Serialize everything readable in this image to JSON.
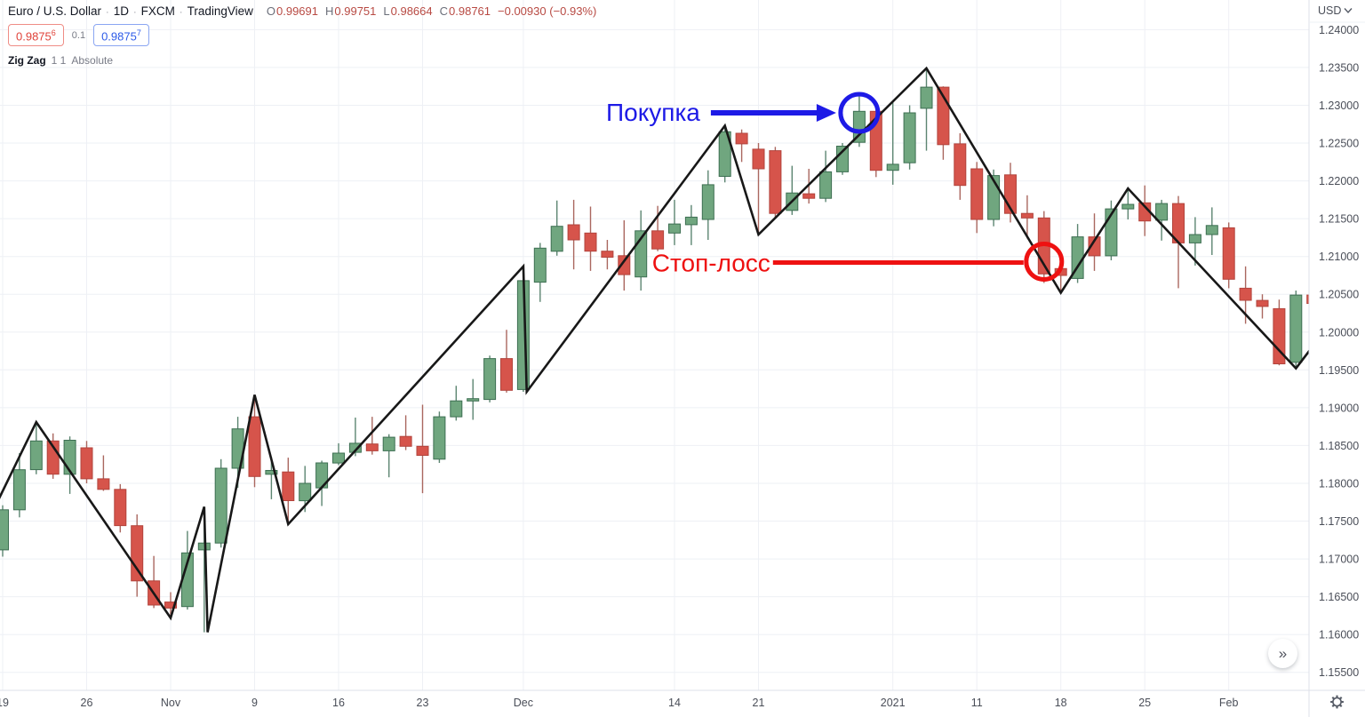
{
  "header": {
    "symbol": "Euro / U.S. Dollar",
    "sep": "·",
    "interval": "1D",
    "exchange": "FXCM",
    "platform": "TradingView",
    "ohlc": {
      "o_label": "O",
      "o": "0.99691",
      "h_label": "H",
      "h": "0.99751",
      "l_label": "L",
      "l": "0.98664",
      "c_label": "C",
      "c": "0.98761",
      "change": "−0.00930 (−0.93%)"
    }
  },
  "quote": {
    "bid": "0.9875",
    "bid_sup": "6",
    "spread": "0.1",
    "ask": "0.9875",
    "ask_sup": "7"
  },
  "indicator": {
    "name": "Zig Zag",
    "params": "1 1",
    "mode": "Absolute"
  },
  "price_axis": {
    "currency": "USD",
    "chevron_icon": "chevron-down"
  },
  "controls": {
    "collapse_label": "»",
    "gear_icon": "gear"
  },
  "annotations": {
    "buy": {
      "label": "Покупка",
      "color": "#1d1ae6",
      "index": 51,
      "price": 1.229
    },
    "stop": {
      "label": "Стоп-лосс",
      "color": "#ee1111",
      "index": 62,
      "price": 1.2092
    }
  },
  "chart_data": {
    "type": "candlestick",
    "symbol": "EUR/USD",
    "interval": "1D",
    "ylim": [
      1.154,
      1.2405
    ],
    "grid": true,
    "price_ticks": [
      "1.24000",
      "1.23500",
      "1.23000",
      "1.22500",
      "1.22000",
      "1.21500",
      "1.21000",
      "1.20500",
      "1.20000",
      "1.19500",
      "1.19000",
      "1.18500",
      "1.18000",
      "1.17500",
      "1.17000",
      "1.16500",
      "1.16000",
      "1.15500"
    ],
    "date_ticks": [
      {
        "label": "19",
        "i": 0
      },
      {
        "label": "26",
        "i": 5
      },
      {
        "label": "Nov",
        "i": 10
      },
      {
        "label": "9",
        "i": 15
      },
      {
        "label": "16",
        "i": 20
      },
      {
        "label": "23",
        "i": 25
      },
      {
        "label": "Dec",
        "i": 31
      },
      {
        "label": "14",
        "i": 40
      },
      {
        "label": "21",
        "i": 45
      },
      {
        "label": "2021",
        "i": 53
      },
      {
        "label": "11",
        "i": 58
      },
      {
        "label": "18",
        "i": 63
      },
      {
        "label": "25",
        "i": 68
      },
      {
        "label": "Feb",
        "i": 73
      }
    ],
    "candles": [
      [
        "Oct 19",
        1.1712,
        1.1771,
        1.1703,
        1.1765
      ],
      [
        "Oct 20",
        1.1765,
        1.184,
        1.1755,
        1.1818
      ],
      [
        "Oct 21",
        1.1818,
        1.1881,
        1.1812,
        1.1856
      ],
      [
        "Oct 22",
        1.1856,
        1.1866,
        1.1806,
        1.1812
      ],
      [
        "Oct 23",
        1.1812,
        1.1862,
        1.1786,
        1.1857
      ],
      [
        "Oct 26",
        1.1847,
        1.1856,
        1.18,
        1.1806
      ],
      [
        "Oct 27",
        1.1806,
        1.1837,
        1.179,
        1.1792
      ],
      [
        "Oct 28",
        1.1792,
        1.1799,
        1.1735,
        1.1744
      ],
      [
        "Oct 29",
        1.1744,
        1.1759,
        1.165,
        1.1671
      ],
      [
        "Oct 30",
        1.1671,
        1.1704,
        1.1635,
        1.1639
      ],
      [
        "Nov 2",
        1.1643,
        1.1656,
        1.1622,
        1.1635
      ],
      [
        "Nov 3",
        1.1637,
        1.1737,
        1.1633,
        1.1708
      ],
      [
        "Nov 4",
        1.1712,
        1.1769,
        1.1603,
        1.1721
      ],
      [
        "Nov 5",
        1.1721,
        1.1832,
        1.1715,
        1.182
      ],
      [
        "Nov 6",
        1.182,
        1.1888,
        1.1794,
        1.1872
      ],
      [
        "Nov 9",
        1.1888,
        1.1917,
        1.1795,
        1.1809
      ],
      [
        "Nov 10",
        1.1812,
        1.1835,
        1.1779,
        1.1817
      ],
      [
        "Nov 11",
        1.1815,
        1.1834,
        1.1746,
        1.1777
      ],
      [
        "Nov 12",
        1.1777,
        1.1823,
        1.1762,
        1.18
      ],
      [
        "Nov 13",
        1.1794,
        1.183,
        1.177,
        1.1827
      ],
      [
        "Nov 16",
        1.1827,
        1.1853,
        1.1824,
        1.184
      ],
      [
        "Nov 17",
        1.1841,
        1.1887,
        1.1836,
        1.1853
      ],
      [
        "Nov 18",
        1.1852,
        1.1888,
        1.1838,
        1.1843
      ],
      [
        "Nov 19",
        1.1843,
        1.1865,
        1.1808,
        1.1861
      ],
      [
        "Nov 20",
        1.1862,
        1.189,
        1.1844,
        1.1849
      ],
      [
        "Nov 23",
        1.1849,
        1.1904,
        1.1787,
        1.1837
      ],
      [
        "Nov 24",
        1.1832,
        1.1895,
        1.1827,
        1.1888
      ],
      [
        "Nov 25",
        1.1888,
        1.1929,
        1.1883,
        1.1909
      ],
      [
        "Nov 26",
        1.1909,
        1.1938,
        1.1884,
        1.1912
      ],
      [
        "Nov 27",
        1.1911,
        1.1969,
        1.1907,
        1.1965
      ],
      [
        "Nov 30",
        1.1965,
        1.2003,
        1.192,
        1.1923
      ],
      [
        "Dec 1",
        1.1924,
        1.2087,
        1.1921,
        1.2068
      ],
      [
        "Dec 2",
        1.2066,
        1.2118,
        1.204,
        1.2111
      ],
      [
        "Dec 3",
        1.2107,
        1.2174,
        1.2101,
        1.214
      ],
      [
        "Dec 4",
        1.2142,
        1.2175,
        1.2083,
        1.2122
      ],
      [
        "Dec 7",
        1.2131,
        1.2166,
        1.2081,
        1.2107
      ],
      [
        "Dec 8",
        1.2107,
        1.2122,
        1.2083,
        1.2099
      ],
      [
        "Dec 9",
        1.2101,
        1.2148,
        1.2055,
        1.2076
      ],
      [
        "Dec 10",
        1.2073,
        1.2161,
        1.2055,
        1.2134
      ],
      [
        "Dec 11",
        1.2134,
        1.2167,
        1.2107,
        1.211
      ],
      [
        "Dec 14",
        1.2131,
        1.2175,
        1.2115,
        1.2143
      ],
      [
        "Dec 15",
        1.2142,
        1.2168,
        1.2115,
        1.2152
      ],
      [
        "Dec 16",
        1.2149,
        1.2214,
        1.2122,
        1.2195
      ],
      [
        "Dec 17",
        1.2206,
        1.2273,
        1.2198,
        1.2265
      ],
      [
        "Dec 18",
        1.2263,
        1.2268,
        1.2225,
        1.2249
      ],
      [
        "Dec 21",
        1.2242,
        1.225,
        1.2129,
        1.2216
      ],
      [
        "Dec 22",
        1.224,
        1.2245,
        1.215,
        1.2157
      ],
      [
        "Dec 23",
        1.2161,
        1.222,
        1.2155,
        1.2184
      ],
      [
        "Dec 24",
        1.2183,
        1.2216,
        1.217,
        1.2177
      ],
      [
        "Dec 28",
        1.2177,
        1.224,
        1.2172,
        1.2212
      ],
      [
        "Dec 29",
        1.2212,
        1.225,
        1.2208,
        1.2246
      ],
      [
        "Dec 30",
        1.2251,
        1.2313,
        1.2245,
        1.2292
      ],
      [
        "Dec 31",
        1.2292,
        1.2301,
        1.2205,
        1.2214
      ],
      [
        "Jan 4",
        1.2214,
        1.2306,
        1.2195,
        1.2222
      ],
      [
        "Jan 5",
        1.2224,
        1.23,
        1.2215,
        1.229
      ],
      [
        "Jan 6",
        1.2296,
        1.2349,
        1.224,
        1.2324
      ],
      [
        "Jan 7",
        1.2324,
        1.2325,
        1.2228,
        1.2248
      ],
      [
        "Jan 8",
        1.2249,
        1.2263,
        1.2175,
        1.2194
      ],
      [
        "Jan 11",
        1.2216,
        1.2225,
        1.2131,
        1.2149
      ],
      [
        "Jan 12",
        1.2149,
        1.2215,
        1.214,
        1.2207
      ],
      [
        "Jan 13",
        1.2208,
        1.2224,
        1.2145,
        1.2157
      ],
      [
        "Jan 14",
        1.2157,
        1.2181,
        1.2124,
        1.2151
      ],
      [
        "Jan 15",
        1.2151,
        1.216,
        1.2065,
        1.2077
      ],
      [
        "Jan 18",
        1.2084,
        1.21,
        1.2052,
        1.2075
      ],
      [
        "Jan 19",
        1.2071,
        1.2143,
        1.2065,
        1.2126
      ],
      [
        "Jan 20",
        1.2126,
        1.2157,
        1.2081,
        1.2101
      ],
      [
        "Jan 21",
        1.2101,
        1.2174,
        1.2095,
        1.2163
      ],
      [
        "Jan 22",
        1.2163,
        1.219,
        1.2149,
        1.2169
      ],
      [
        "Jan 25",
        1.2171,
        1.2194,
        1.2127,
        1.2147
      ],
      [
        "Jan 26",
        1.2148,
        1.2175,
        1.2121,
        1.217
      ],
      [
        "Jan 27",
        1.217,
        1.218,
        1.2058,
        1.2118
      ],
      [
        "Jan 28",
        1.2118,
        1.2152,
        1.2088,
        1.2129
      ],
      [
        "Jan 29",
        1.2129,
        1.2165,
        1.2102,
        1.2141
      ],
      [
        "Feb 1",
        1.2138,
        1.2145,
        1.2058,
        1.207
      ],
      [
        "Feb 2",
        1.2058,
        1.2087,
        1.2011,
        1.2042
      ],
      [
        "Feb 3",
        1.2042,
        1.205,
        1.2018,
        1.2034
      ],
      [
        "Feb 4",
        1.2031,
        1.2043,
        1.1956,
        1.1958
      ],
      [
        "Feb 5",
        1.196,
        1.2055,
        1.1952,
        1.2049
      ],
      [
        "Feb 8",
        1.2049,
        1.2056,
        1.203,
        1.2038
      ]
    ],
    "zigzag": [
      [
        -0.3,
        1.1776
      ],
      [
        2,
        1.1881
      ],
      [
        10,
        1.1622
      ],
      [
        12,
        1.1769
      ],
      [
        12.2,
        1.1603
      ],
      [
        15,
        1.1917
      ],
      [
        17,
        1.1746
      ],
      [
        31,
        1.2087
      ],
      [
        31.2,
        1.1921
      ],
      [
        43,
        1.2273
      ],
      [
        45,
        1.2129
      ],
      [
        55,
        1.2349
      ],
      [
        63,
        1.2052
      ],
      [
        67,
        1.219
      ],
      [
        77,
        1.1952
      ],
      [
        78.3,
        1.199
      ]
    ],
    "colors": {
      "up": "#70a67f",
      "up_border": "#3d6f52",
      "down": "#d6544b",
      "down_border": "#b2443c",
      "wick_up": "#5c8571",
      "wick_down": "#aa675f",
      "grid": "#eef0f5",
      "zigzag": "#181818",
      "axis_text": "#4a4e58",
      "separator": "#dde0e8",
      "icon": "#565b66"
    }
  }
}
